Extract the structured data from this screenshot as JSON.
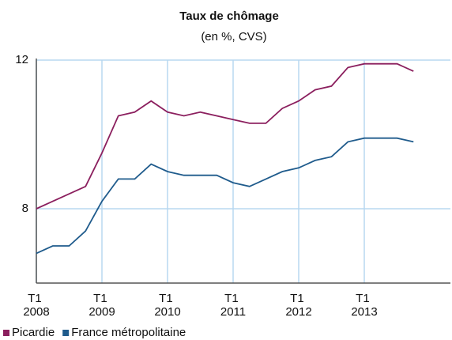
{
  "chart_data": {
    "type": "line",
    "title": "Taux de chômage",
    "subtitle": "(en %, CVS)",
    "categories": [
      "T1 2008",
      null,
      null,
      null,
      "T1 2009",
      null,
      null,
      null,
      "T1 2010",
      null,
      null,
      null,
      "T1 2011",
      null,
      null,
      null,
      "T1 2012",
      null,
      null,
      null,
      "T1 2013",
      null,
      null,
      null
    ],
    "series": [
      {
        "name": "Picardie",
        "color": "#8b1f5e",
        "values": [
          8.0,
          8.2,
          8.4,
          8.6,
          9.5,
          10.5,
          10.6,
          10.9,
          10.6,
          10.5,
          10.6,
          10.5,
          10.4,
          10.3,
          10.3,
          10.7,
          10.9,
          11.2,
          11.3,
          11.8,
          11.9,
          11.9,
          11.9,
          11.7
        ]
      },
      {
        "name": "France métropolitaine",
        "color": "#1f5b8c",
        "values": [
          6.8,
          7.0,
          7.0,
          7.4,
          8.2,
          8.8,
          8.8,
          9.2,
          9.0,
          8.9,
          8.9,
          8.9,
          8.7,
          8.6,
          8.8,
          9.0,
          9.1,
          9.3,
          9.4,
          9.8,
          9.9,
          9.9,
          9.9,
          9.8
        ]
      }
    ],
    "ylim": [
      6,
      12
    ],
    "yticks": [
      8,
      12
    ],
    "grid": true,
    "legend": "bottom-left"
  }
}
